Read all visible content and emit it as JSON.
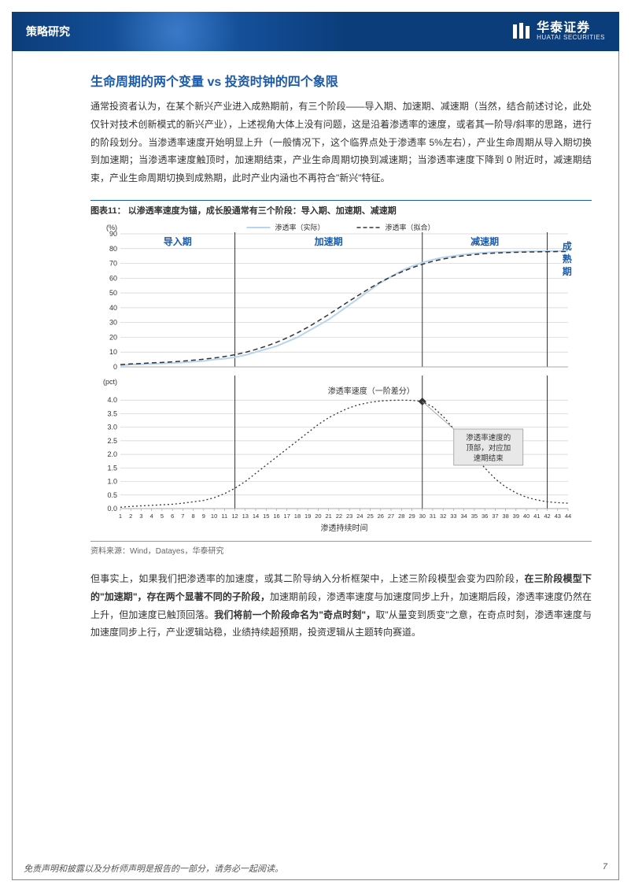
{
  "header": {
    "category": "策略研究",
    "logo_cn": "华泰证券",
    "logo_en": "HUATAI SECURITIES"
  },
  "section_title": "生命周期的两个变量 vs 投资时钟的四个象限",
  "paragraph1": "通常投资者认为，在某个新兴产业进入成熟期前，有三个阶段——导入期、加速期、减速期（当然，结合前述讨论，此处仅针对技术创新模式的新兴产业），上述视角大体上没有问题，这是沿着渗透率的速度，或者其一阶导/斜率的思路，进行的阶段划分。当渗透率速度开始明显上升（一般情况下，这个临界点处于渗透率 5%左右），产业生命周期从导入期切换到加速期；当渗透率速度触顶时，加速期结束，产业生命周期切换到减速期；当渗透率速度下降到 0 附近时，减速期结束，产业生命周期切换到成熟期，此时产业内涵也不再符合\"新兴\"特征。",
  "figure": {
    "number": "图表11：",
    "title": "以渗透率速度为锚，成长股通常有三个阶段：导入期、加速期、减速期",
    "legend_actual": "渗透率（实际）",
    "legend_fitted": "渗透率（拟合）",
    "phase_intro": "导入期",
    "phase_accel": "加速期",
    "phase_decel": "减速期",
    "phase_mature": "成熟期",
    "top_chart": {
      "ylabel": "(%)",
      "ylim": [
        0,
        90
      ],
      "yticks": [
        0,
        10,
        20,
        30,
        40,
        50,
        60,
        70,
        80,
        90
      ],
      "x_count": 44,
      "actual_color": "#b7d4f0",
      "fitted_color": "#333333",
      "fitted_dash": "6,4",
      "actual": [
        1,
        1.5,
        1.7,
        2,
        2.3,
        2.6,
        3,
        3.5,
        4,
        5,
        5.5,
        6.5,
        8,
        10,
        12,
        14,
        17,
        20,
        24,
        28,
        32,
        37,
        42,
        47,
        52,
        57,
        61,
        65,
        68,
        70.5,
        72.5,
        74,
        75,
        76,
        76.8,
        77.3,
        77.6,
        77.8,
        78,
        78.1,
        78.2,
        78.3,
        78.35,
        78.4
      ],
      "fitted": [
        1.5,
        2,
        2.3,
        2.7,
        3,
        3.4,
        3.9,
        4.5,
        5.2,
        6,
        7,
        8.2,
        9.8,
        11.8,
        14,
        16.6,
        19.6,
        23,
        26.8,
        31,
        35.4,
        40,
        44.6,
        49,
        53.4,
        57.4,
        61,
        64.2,
        67,
        69.4,
        71.4,
        73,
        74.2,
        75.2,
        76,
        76.6,
        77,
        77.3,
        77.5,
        77.7,
        77.8,
        77.9,
        78,
        78.05
      ]
    },
    "bottom_chart": {
      "ylabel": "(pct)",
      "ylim": [
        0,
        4.5
      ],
      "yticks": [
        0,
        0.5,
        1.0,
        1.5,
        2.0,
        2.5,
        3.0,
        3.5,
        4.0
      ],
      "x_count": 44,
      "xlabel": "渗透持续时间",
      "speed_label": "渗透率速度（一阶差分）",
      "callout": "渗透率速度的顶部，对应加速期结束",
      "line_color": "#333333",
      "dash": "2,3",
      "marker_at": 30,
      "speed": [
        0.05,
        0.08,
        0.1,
        0.12,
        0.14,
        0.16,
        0.2,
        0.25,
        0.3,
        0.4,
        0.55,
        0.75,
        1.0,
        1.3,
        1.6,
        1.9,
        2.2,
        2.5,
        2.8,
        3.1,
        3.35,
        3.55,
        3.72,
        3.84,
        3.92,
        3.97,
        3.99,
        4.0,
        3.99,
        3.95,
        3.75,
        3.4,
        2.95,
        2.45,
        1.95,
        1.5,
        1.1,
        0.8,
        0.58,
        0.42,
        0.32,
        0.25,
        0.22,
        0.2
      ]
    },
    "dividers_x": [
      12,
      30,
      42
    ],
    "grid_color": "#d0d0d0",
    "text_color": "#1a5aaa",
    "callout_bg": "#e8e8e8",
    "callout_border": "#999999"
  },
  "source": "资料来源：Wind，Datayes，华泰研究",
  "paragraph2_parts": [
    {
      "t": "但事实上，如果我们把渗透率的加速度，或其二阶导纳入分析框架中，上述三阶段模型会变为四阶段，",
      "b": false
    },
    {
      "t": "在三阶段模型下的\"加速期\"，存在两个显著不同的子阶段，",
      "b": true
    },
    {
      "t": "加速期前段，渗透率速度与加速度同步上升，加速期后段，渗透率速度仍然在上升，但加速度已触顶回落。",
      "b": false
    },
    {
      "t": "我们将前一个阶段命名为\"奇点时刻\"，",
      "b": true
    },
    {
      "t": "取\"从量变到质变\"之意，在奇点时刻，渗透率速度与加速度同步上行，产业逻辑站稳，业绩持续超预期，投资逻辑从主题转向赛道。",
      "b": false
    }
  ],
  "footer": {
    "disclaimer": "免责声明和披露以及分析师声明是报告的一部分，请务必一起阅读。",
    "page": "7"
  }
}
